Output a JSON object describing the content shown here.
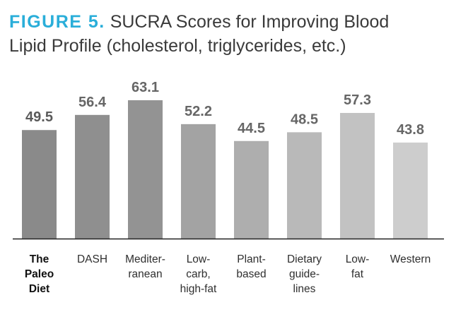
{
  "figure": {
    "label": "FIGURE 5.",
    "title_line1": "SUCRA Scores for Improving Blood",
    "title_line2": "Lipid Profile (cholesterol, triglycerides, etc.)"
  },
  "colors": {
    "accent": "#2aaed9",
    "value_text": "#666666",
    "highlight_value_text": "#5a5a5a",
    "baseline": "#222222"
  },
  "chart_data": {
    "type": "bar",
    "title": "SUCRA Scores for Improving Blood Lipid Profile (cholesterol, triglycerides, etc.)",
    "categories": [
      "The Paleo Diet",
      "DASH",
      "Mediterranean",
      "Low-carb, high-fat",
      "Plant-based",
      "Dietary guidelines",
      "Low-fat",
      "Western"
    ],
    "category_label_lines": [
      [
        "The",
        "Paleo",
        "Diet"
      ],
      [
        "DASH"
      ],
      [
        "Mediter-",
        "ranean"
      ],
      [
        "Low-",
        "carb,",
        "high-fat"
      ],
      [
        "Plant-",
        "based"
      ],
      [
        "Dietary",
        "guide-",
        "lines"
      ],
      [
        "Low-",
        "fat"
      ],
      [
        "Western"
      ]
    ],
    "values": [
      49.5,
      56.4,
      63.1,
      52.2,
      44.5,
      48.5,
      57.3,
      43.8
    ],
    "value_labels": [
      "49.5",
      "56.4",
      "63.1",
      "52.2",
      "44.5",
      "48.5",
      "57.3",
      "43.8"
    ],
    "highlight_index": 0,
    "bar_colors": [
      "#8a8a8a",
      "#8f8f8f",
      "#939393",
      "#a3a3a3",
      "#aeaeae",
      "#b9b9b9",
      "#c2c2c2",
      "#cdcdcd"
    ],
    "xlabel": "",
    "ylabel": "",
    "ylim": [
      0,
      63.1
    ],
    "grid": false,
    "legend": "none"
  }
}
